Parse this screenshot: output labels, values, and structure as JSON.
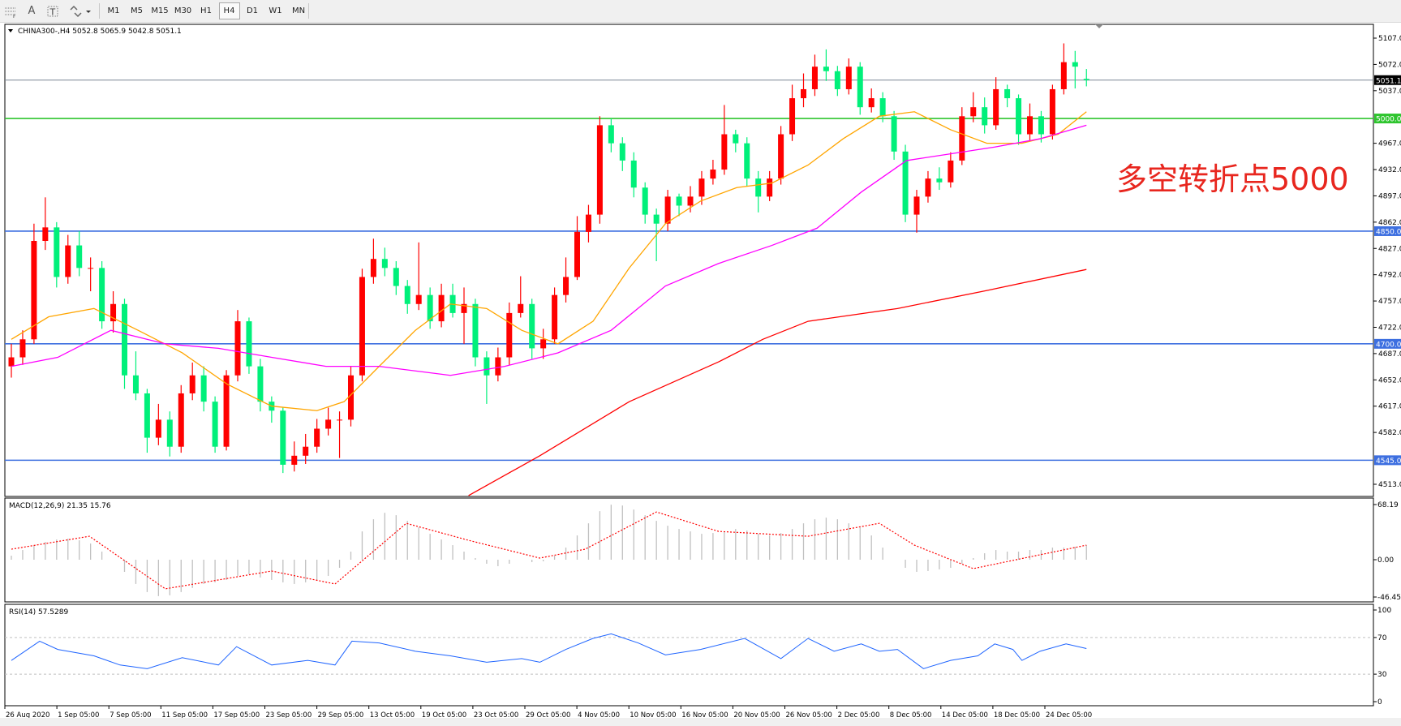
{
  "toolbar": {
    "icons": [
      "crosshair-grid-icon",
      "text-icon",
      "text-label-icon",
      "arrows-icon"
    ],
    "text_tool": "A",
    "timeframes": [
      "M1",
      "M5",
      "M15",
      "M30",
      "H1",
      "H4",
      "D1",
      "W1",
      "MN"
    ],
    "active_timeframe": "H4"
  },
  "chart": {
    "symbol_label": "CHINA300-,H4",
    "ohlc_label": "5052.8 5065.9 5042.8 5051.1",
    "annotation": "多空转折点5000",
    "annotation_color": "#e8261e"
  },
  "chart_data": {
    "type": "candlestick",
    "up_color": "#ff0000",
    "down_color": "#00f07a",
    "ylim": [
      4513,
      5107
    ],
    "price_ticks": [
      "5107.0",
      "5072.0",
      "5037.0",
      "4967.0",
      "4932.0",
      "4897.0",
      "4862.0",
      "4827.0",
      "4792.0",
      "4757.0",
      "4722.0",
      "4687.0",
      "4652.0",
      "4617.0",
      "4582.0",
      "4513.0"
    ],
    "time_labels": [
      "26 Aug 2020",
      "1 Sep 05:00",
      "7 Sep 05:00",
      "11 Sep 05:00",
      "17 Sep 05:00",
      "23 Sep 05:00",
      "29 Sep 05:00",
      "13 Oct 05:00",
      "19 Oct 05:00",
      "23 Oct 05:00",
      "29 Oct 05:00",
      "4 Nov 05:00",
      "10 Nov 05:00",
      "16 Nov 05:00",
      "20 Nov 05:00",
      "26 Nov 05:00",
      "2 Dec 05:00",
      "8 Dec 05:00",
      "14 Dec 05:00",
      "18 Dec 05:00",
      "24 Dec 05:00"
    ],
    "horizontal_lines": [
      {
        "price": 5051.1,
        "label": "5051.1",
        "color": "#7a8796",
        "label_bg": "#000000"
      },
      {
        "price": 5000.0,
        "label": "5000.0",
        "color": "#2ec52e",
        "label_bg": "#2ec52e"
      },
      {
        "price": 4850.0,
        "label": "4850.0",
        "color": "#3d6fe0",
        "label_bg": "#3d6fe0"
      },
      {
        "price": 4700.0,
        "label": "4700.0",
        "color": "#3d6fe0",
        "label_bg": "#3d6fe0"
      },
      {
        "price": 4545.0,
        "label": "4545.0",
        "color": "#3d6fe0",
        "label_bg": "#3d6fe0"
      }
    ],
    "candles": [
      [
        4670,
        4700,
        4655,
        4682
      ],
      [
        4682,
        4718,
        4672,
        4706
      ],
      [
        4706,
        4860,
        4700,
        4837
      ],
      [
        4837,
        4895,
        4825,
        4855
      ],
      [
        4855,
        4862,
        4775,
        4789
      ],
      [
        4789,
        4845,
        4780,
        4831
      ],
      [
        4831,
        4850,
        4790,
        4801
      ],
      [
        4801,
        4815,
        4770,
        4801
      ],
      [
        4801,
        4810,
        4720,
        4730
      ],
      [
        4730,
        4770,
        4715,
        4753
      ],
      [
        4753,
        4760,
        4640,
        4658
      ],
      [
        4658,
        4690,
        4625,
        4634
      ],
      [
        4634,
        4640,
        4555,
        4575
      ],
      [
        4575,
        4620,
        4565,
        4599
      ],
      [
        4599,
        4610,
        4550,
        4563
      ],
      [
        4563,
        4645,
        4555,
        4634
      ],
      [
        4634,
        4675,
        4625,
        4658
      ],
      [
        4658,
        4670,
        4610,
        4623
      ],
      [
        4623,
        4630,
        4555,
        4563
      ],
      [
        4563,
        4665,
        4558,
        4658
      ],
      [
        4658,
        4745,
        4650,
        4730
      ],
      [
        4730,
        4735,
        4660,
        4670
      ],
      [
        4670,
        4680,
        4610,
        4623
      ],
      [
        4623,
        4630,
        4595,
        4611
      ],
      [
        4611,
        4615,
        4528,
        4539
      ],
      [
        4539,
        4570,
        4530,
        4551
      ],
      [
        4551,
        4580,
        4540,
        4563
      ],
      [
        4563,
        4600,
        4555,
        4587
      ],
      [
        4587,
        4615,
        4578,
        4599
      ],
      [
        4599,
        4610,
        4548,
        4599
      ],
      [
        4599,
        4670,
        4590,
        4658
      ],
      [
        4658,
        4800,
        4650,
        4789
      ],
      [
        4789,
        4840,
        4780,
        4813
      ],
      [
        4813,
        4828,
        4790,
        4801
      ],
      [
        4801,
        4810,
        4765,
        4777
      ],
      [
        4777,
        4785,
        4740,
        4753
      ],
      [
        4753,
        4835,
        4745,
        4765
      ],
      [
        4765,
        4775,
        4720,
        4730
      ],
      [
        4730,
        4780,
        4722,
        4765
      ],
      [
        4765,
        4780,
        4735,
        4741
      ],
      [
        4741,
        4775,
        4700,
        4753
      ],
      [
        4753,
        4760,
        4670,
        4682
      ],
      [
        4682,
        4690,
        4620,
        4658
      ],
      [
        4658,
        4695,
        4650,
        4682
      ],
      [
        4682,
        4755,
        4672,
        4741
      ],
      [
        4741,
        4790,
        4735,
        4753
      ],
      [
        4753,
        4760,
        4680,
        4694
      ],
      [
        4694,
        4720,
        4680,
        4706
      ],
      [
        4706,
        4775,
        4700,
        4765
      ],
      [
        4765,
        4815,
        4755,
        4789
      ],
      [
        4789,
        4870,
        4785,
        4849
      ],
      [
        4849,
        4885,
        4835,
        4872
      ],
      [
        4872,
        5003,
        4860,
        4991
      ],
      [
        4991,
        5000,
        4955,
        4967
      ],
      [
        4967,
        4975,
        4930,
        4944
      ],
      [
        4944,
        4955,
        4895,
        4908
      ],
      [
        4908,
        4915,
        4860,
        4872
      ],
      [
        4872,
        4880,
        4810,
        4860
      ],
      [
        4860,
        4905,
        4850,
        4896
      ],
      [
        4896,
        4900,
        4870,
        4884
      ],
      [
        4884,
        4910,
        4875,
        4896
      ],
      [
        4896,
        4930,
        4885,
        4920
      ],
      [
        4920,
        4945,
        4912,
        4932
      ],
      [
        4932,
        5018,
        4925,
        4979
      ],
      [
        4979,
        4985,
        4955,
        4967
      ],
      [
        4967,
        4975,
        4910,
        4920
      ],
      [
        4920,
        4930,
        4875,
        4896
      ],
      [
        4896,
        4930,
        4890,
        4920
      ],
      [
        4920,
        4990,
        4912,
        4979
      ],
      [
        4979,
        5045,
        4970,
        5027
      ],
      [
        5027,
        5060,
        5015,
        5039
      ],
      [
        5039,
        5085,
        5030,
        5069
      ],
      [
        5069,
        5092,
        5050,
        5063
      ],
      [
        5063,
        5070,
        5030,
        5039
      ],
      [
        5039,
        5080,
        5032,
        5069
      ],
      [
        5069,
        5075,
        5005,
        5015
      ],
      [
        5015,
        5040,
        5008,
        5027
      ],
      [
        5027,
        5035,
        4995,
        5003
      ],
      [
        5003,
        5010,
        4945,
        4956
      ],
      [
        4956,
        4965,
        4862,
        4872
      ],
      [
        4872,
        4905,
        4848,
        4896
      ],
      [
        4896,
        4930,
        4888,
        4920
      ],
      [
        4920,
        4935,
        4905,
        4915
      ],
      [
        4915,
        4955,
        4908,
        4944
      ],
      [
        4944,
        5015,
        4938,
        5003
      ],
      [
        5003,
        5035,
        4995,
        5015
      ],
      [
        5015,
        5028,
        4980,
        4991
      ],
      [
        4991,
        5055,
        4985,
        5039
      ],
      [
        5039,
        5045,
        5015,
        5027
      ],
      [
        5027,
        5032,
        4965,
        4979
      ],
      [
        4979,
        5020,
        4970,
        5003
      ],
      [
        5003,
        5010,
        4968,
        4979
      ],
      [
        4979,
        5045,
        4972,
        5039
      ],
      [
        5039,
        5100,
        5032,
        5075
      ],
      [
        5075,
        5090,
        5040,
        5069
      ],
      [
        5052.8,
        5065.9,
        5042.8,
        5051.1
      ]
    ],
    "moving_averages": [
      {
        "color": "#ffa500",
        "points": [
          [
            0,
            4706
          ],
          [
            3.3,
            4736
          ],
          [
            7.3,
            4747
          ],
          [
            11.2,
            4718
          ],
          [
            15.1,
            4688
          ],
          [
            19.1,
            4646
          ],
          [
            23,
            4617
          ],
          [
            27,
            4611
          ],
          [
            29.4,
            4623
          ],
          [
            32.5,
            4670
          ],
          [
            35.7,
            4718
          ],
          [
            38.8,
            4753
          ],
          [
            42,
            4747
          ],
          [
            45.1,
            4718
          ],
          [
            48.3,
            4700
          ],
          [
            51.4,
            4730
          ],
          [
            54.6,
            4801
          ],
          [
            57.8,
            4860
          ],
          [
            60.9,
            4890
          ],
          [
            64.1,
            4908
          ],
          [
            67.2,
            4914
          ],
          [
            70.4,
            4938
          ],
          [
            73.5,
            4973
          ],
          [
            76.7,
            5003
          ],
          [
            79.8,
            5009
          ],
          [
            83,
            4985
          ],
          [
            86.2,
            4967
          ],
          [
            89.3,
            4967
          ],
          [
            92.5,
            4979
          ],
          [
            95,
            5009
          ]
        ]
      },
      {
        "color": "#ff00ff",
        "points": [
          [
            0,
            4670
          ],
          [
            4.1,
            4682
          ],
          [
            8.8,
            4718
          ],
          [
            13.6,
            4700
          ],
          [
            18.3,
            4694
          ],
          [
            23,
            4682
          ],
          [
            27.8,
            4670
          ],
          [
            32.5,
            4670
          ],
          [
            38.8,
            4658
          ],
          [
            43.6,
            4670
          ],
          [
            48.3,
            4688
          ],
          [
            53,
            4718
          ],
          [
            57.8,
            4777
          ],
          [
            62.5,
            4807
          ],
          [
            67.2,
            4831
          ],
          [
            71.2,
            4854
          ],
          [
            75.1,
            4902
          ],
          [
            79.1,
            4944
          ],
          [
            83,
            4953
          ],
          [
            86.9,
            4962
          ],
          [
            90.9,
            4973
          ],
          [
            95,
            4991
          ]
        ]
      },
      {
        "color": "#ff0000",
        "points": [
          [
            40.4,
            4498
          ],
          [
            46.7,
            4551
          ],
          [
            54.6,
            4623
          ],
          [
            62.5,
            4676
          ],
          [
            66.4,
            4706
          ],
          [
            70.4,
            4730
          ],
          [
            78.3,
            4747
          ],
          [
            86.2,
            4771
          ],
          [
            95,
            4799
          ]
        ]
      }
    ],
    "macd": {
      "label": "MACD(12,26,9) 21.35 15.76",
      "ylim": [
        -46.45,
        68.19
      ],
      "ticks": [
        "68.19",
        "0.00",
        "-46.45"
      ],
      "histogram_color": "#c0c0c0",
      "signal_color": "#ff0000",
      "histogram": [
        5,
        12,
        18,
        22,
        25,
        26,
        24,
        20,
        10,
        0,
        -15,
        -30,
        -40,
        -45,
        -44,
        -40,
        -35,
        -30,
        -28,
        -25,
        -20,
        -18,
        -22,
        -25,
        -28,
        -30,
        -28,
        -25,
        -20,
        -10,
        10,
        35,
        50,
        58,
        55,
        48,
        40,
        32,
        25,
        18,
        10,
        2,
        -5,
        -8,
        -5,
        0,
        -3,
        -2,
        5,
        15,
        30,
        45,
        60,
        68,
        67,
        62,
        55,
        48,
        42,
        38,
        35,
        32,
        33,
        35,
        38,
        36,
        32,
        30,
        33,
        38,
        45,
        50,
        52,
        50,
        45,
        40,
        30,
        15,
        0,
        -10,
        -15,
        -14,
        -12,
        -10,
        -5,
        2,
        8,
        12,
        10,
        10,
        12,
        12,
        15,
        15,
        16,
        18
      ],
      "signal": [
        [
          0,
          13
        ],
        [
          6.9,
          29
        ],
        [
          13.6,
          -36
        ],
        [
          23,
          -14
        ],
        [
          28.6,
          -30
        ],
        [
          34.9,
          45
        ],
        [
          40.4,
          24
        ],
        [
          46.7,
          2
        ],
        [
          50.7,
          13
        ],
        [
          57,
          59
        ],
        [
          62.5,
          35
        ],
        [
          70.4,
          29
        ],
        [
          76.7,
          45
        ],
        [
          79.8,
          18
        ],
        [
          85,
          -11
        ],
        [
          95,
          18
        ]
      ]
    },
    "rsi": {
      "label": "RSI(14) 57.5289",
      "ylim": [
        0,
        100
      ],
      "ticks": [
        "100",
        "70",
        "30",
        "0"
      ],
      "levels": [
        70,
        30
      ],
      "color": "#1e64ff",
      "points": [
        [
          0,
          45
        ],
        [
          2.5,
          66
        ],
        [
          4.1,
          57
        ],
        [
          7.3,
          50
        ],
        [
          9.6,
          40
        ],
        [
          12,
          36
        ],
        [
          15.1,
          48
        ],
        [
          18.3,
          40
        ],
        [
          19.9,
          60
        ],
        [
          23,
          40
        ],
        [
          26.2,
          45
        ],
        [
          28.6,
          40
        ],
        [
          30.1,
          66
        ],
        [
          32.5,
          64
        ],
        [
          35.7,
          55
        ],
        [
          38.8,
          50
        ],
        [
          42,
          43
        ],
        [
          45.1,
          47
        ],
        [
          46.7,
          43
        ],
        [
          49,
          57
        ],
        [
          51.4,
          69
        ],
        [
          53,
          74
        ],
        [
          55.4,
          64
        ],
        [
          57.8,
          51
        ],
        [
          60.9,
          57
        ],
        [
          64.8,
          69
        ],
        [
          68,
          47
        ],
        [
          70.4,
          69
        ],
        [
          72.7,
          55
        ],
        [
          75.1,
          63
        ],
        [
          76.7,
          55
        ],
        [
          78.3,
          57
        ],
        [
          80.6,
          36
        ],
        [
          83,
          45
        ],
        [
          85.4,
          50
        ],
        [
          86.9,
          63
        ],
        [
          88.5,
          57
        ],
        [
          89.3,
          45
        ],
        [
          90.9,
          55
        ],
        [
          93.2,
          63
        ],
        [
          95,
          58
        ]
      ]
    },
    "grid": false
  }
}
